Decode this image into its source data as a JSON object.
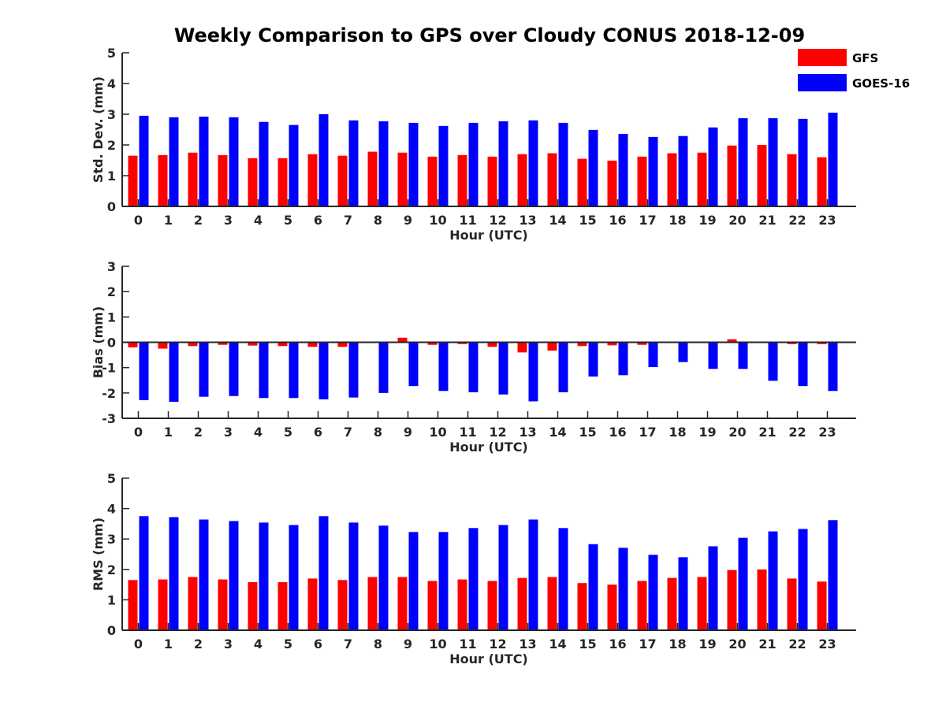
{
  "chart_data": {
    "title": "Weekly Comparison to GPS over Cloudy CONUS 2018-12-09",
    "colors": {
      "GFS": "#ff0000",
      "GOES-16": "#0000ff"
    },
    "legend": {
      "position": "top-right",
      "entries": [
        "GFS",
        "GOES-16"
      ]
    },
    "panels": [
      {
        "type": "bar",
        "xlabel": "Hour (UTC)",
        "ylabel": "Std. Dev. (mm)",
        "ylim": [
          0,
          5
        ],
        "yticks": [
          0,
          1,
          2,
          3,
          4,
          5
        ],
        "categories": [
          "0",
          "1",
          "2",
          "3",
          "4",
          "5",
          "6",
          "7",
          "8",
          "9",
          "10",
          "11",
          "12",
          "13",
          "14",
          "15",
          "16",
          "17",
          "18",
          "19",
          "20",
          "21",
          "22",
          "23"
        ],
        "series": [
          {
            "name": "GFS",
            "values": [
              1.65,
              1.67,
              1.75,
              1.67,
              1.57,
              1.57,
              1.7,
              1.65,
              1.78,
              1.75,
              1.62,
              1.67,
              1.62,
              1.7,
              1.73,
              1.55,
              1.49,
              1.62,
              1.73,
              1.75,
              1.98,
              2.0,
              1.7,
              1.6
            ]
          },
          {
            "name": "GOES-16",
            "values": [
              2.95,
              2.9,
              2.92,
              2.9,
              2.75,
              2.65,
              3.0,
              2.8,
              2.77,
              2.72,
              2.62,
              2.72,
              2.77,
              2.8,
              2.72,
              2.49,
              2.36,
              2.26,
              2.29,
              2.57,
              2.87,
              2.87,
              2.85,
              3.05
            ]
          }
        ]
      },
      {
        "type": "bar",
        "xlabel": "Hour (UTC)",
        "ylabel": "Bias (mm)",
        "ylim": [
          -3,
          3
        ],
        "yticks": [
          -3,
          -2,
          -1,
          0,
          1,
          2,
          3
        ],
        "categories": [
          "0",
          "1",
          "2",
          "3",
          "4",
          "5",
          "6",
          "7",
          "8",
          "9",
          "10",
          "11",
          "12",
          "13",
          "14",
          "15",
          "16",
          "17",
          "18",
          "19",
          "20",
          "21",
          "22",
          "23"
        ],
        "series": [
          {
            "name": "GFS",
            "values": [
              -0.2,
              -0.25,
              -0.15,
              -0.1,
              -0.13,
              -0.15,
              -0.18,
              -0.18,
              0,
              0.18,
              -0.1,
              -0.07,
              -0.18,
              -0.4,
              -0.33,
              -0.15,
              -0.12,
              -0.1,
              0.02,
              0,
              0.12,
              0,
              -0.07,
              -0.07
            ]
          },
          {
            "name": "GOES-16",
            "values": [
              -2.28,
              -2.35,
              -2.15,
              -2.12,
              -2.2,
              -2.2,
              -2.25,
              -2.18,
              -2.0,
              -1.73,
              -1.92,
              -1.97,
              -2.06,
              -2.33,
              -1.97,
              -1.35,
              -1.3,
              -0.98,
              -0.78,
              -1.05,
              -1.05,
              -1.52,
              -1.73,
              -1.92
            ]
          }
        ]
      },
      {
        "type": "bar",
        "xlabel": "Hour (UTC)",
        "ylabel": "RMS (mm)",
        "ylim": [
          0,
          5
        ],
        "yticks": [
          0,
          1,
          2,
          3,
          4,
          5
        ],
        "categories": [
          "0",
          "1",
          "2",
          "3",
          "4",
          "5",
          "6",
          "7",
          "8",
          "9",
          "10",
          "11",
          "12",
          "13",
          "14",
          "15",
          "16",
          "17",
          "18",
          "19",
          "20",
          "21",
          "22",
          "23"
        ],
        "series": [
          {
            "name": "GFS",
            "values": [
              1.65,
              1.67,
              1.75,
              1.67,
              1.58,
              1.58,
              1.7,
              1.65,
              1.75,
              1.75,
              1.62,
              1.67,
              1.62,
              1.72,
              1.75,
              1.55,
              1.5,
              1.62,
              1.72,
              1.75,
              1.98,
              2.0,
              1.7,
              1.6
            ]
          },
          {
            "name": "GOES-16",
            "values": [
              3.75,
              3.72,
              3.64,
              3.59,
              3.54,
              3.46,
              3.75,
              3.54,
              3.44,
              3.23,
              3.23,
              3.36,
              3.46,
              3.64,
              3.36,
              2.83,
              2.71,
              2.48,
              2.4,
              2.76,
              3.04,
              3.25,
              3.33,
              3.62
            ]
          }
        ]
      }
    ]
  }
}
